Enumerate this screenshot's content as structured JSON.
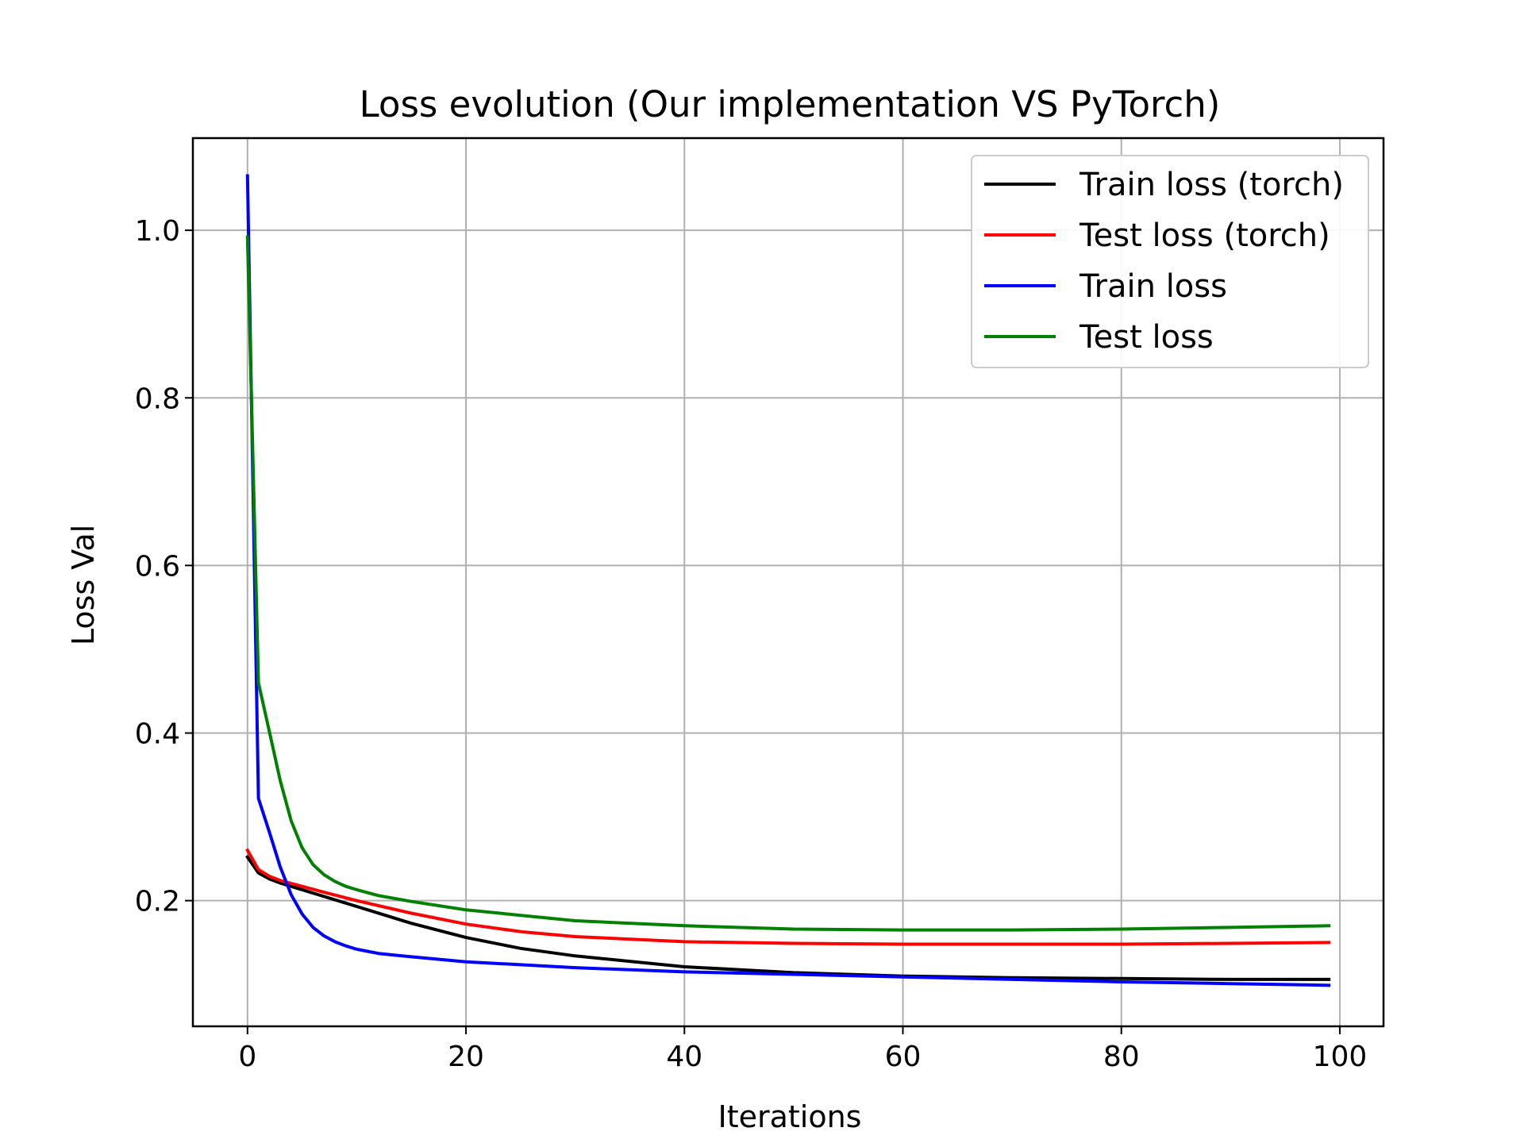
{
  "chart_data": {
    "type": "line",
    "title": "Loss evolution (Our implementation VS PyTorch)",
    "xlabel": "Iterations",
    "ylabel": "Loss Val",
    "xlim": [
      -5,
      104
    ],
    "ylim": [
      0.05,
      1.11
    ],
    "xticks": [
      0,
      20,
      40,
      60,
      80,
      100
    ],
    "yticks": [
      0.2,
      0.4,
      0.6,
      0.8,
      1.0
    ],
    "xtick_labels": [
      "0",
      "20",
      "40",
      "60",
      "80",
      "100"
    ],
    "ytick_labels": [
      "0.2",
      "0.4",
      "0.6",
      "0.8",
      "1.0"
    ],
    "grid": true,
    "legend_position": "upper right",
    "series": [
      {
        "name": "Train loss (torch)",
        "color": "#000000",
        "x": [
          0,
          1,
          2,
          3,
          5,
          7,
          10,
          15,
          20,
          25,
          30,
          40,
          50,
          60,
          70,
          80,
          90,
          99
        ],
        "y": [
          0.252,
          0.233,
          0.226,
          0.221,
          0.213,
          0.205,
          0.193,
          0.173,
          0.156,
          0.143,
          0.134,
          0.121,
          0.114,
          0.11,
          0.108,
          0.107,
          0.106,
          0.106
        ]
      },
      {
        "name": "Test loss (torch)",
        "color": "#ff0000",
        "x": [
          0,
          1,
          2,
          3,
          5,
          7,
          10,
          15,
          20,
          25,
          30,
          40,
          50,
          60,
          70,
          80,
          90,
          99
        ],
        "y": [
          0.26,
          0.237,
          0.229,
          0.224,
          0.217,
          0.21,
          0.2,
          0.185,
          0.172,
          0.163,
          0.157,
          0.151,
          0.149,
          0.148,
          0.148,
          0.148,
          0.149,
          0.15
        ]
      },
      {
        "name": "Train loss",
        "color": "#0000ff",
        "x": [
          0,
          1,
          2,
          3,
          4,
          5,
          6,
          7,
          8,
          9,
          10,
          12,
          15,
          20,
          30,
          40,
          50,
          60,
          70,
          80,
          90,
          99
        ],
        "y": [
          1.065,
          0.322,
          0.282,
          0.24,
          0.207,
          0.184,
          0.168,
          0.158,
          0.151,
          0.146,
          0.142,
          0.137,
          0.133,
          0.127,
          0.12,
          0.115,
          0.112,
          0.109,
          0.106,
          0.103,
          0.101,
          0.099
        ]
      },
      {
        "name": "Test loss",
        "color": "#008000",
        "x": [
          0,
          1,
          2,
          3,
          4,
          5,
          6,
          7,
          8,
          9,
          10,
          12,
          15,
          20,
          30,
          40,
          50,
          60,
          70,
          80,
          90,
          99
        ],
        "y": [
          0.992,
          0.46,
          0.402,
          0.343,
          0.295,
          0.263,
          0.243,
          0.231,
          0.223,
          0.217,
          0.213,
          0.206,
          0.199,
          0.189,
          0.176,
          0.17,
          0.166,
          0.165,
          0.165,
          0.166,
          0.168,
          0.17
        ]
      }
    ]
  }
}
